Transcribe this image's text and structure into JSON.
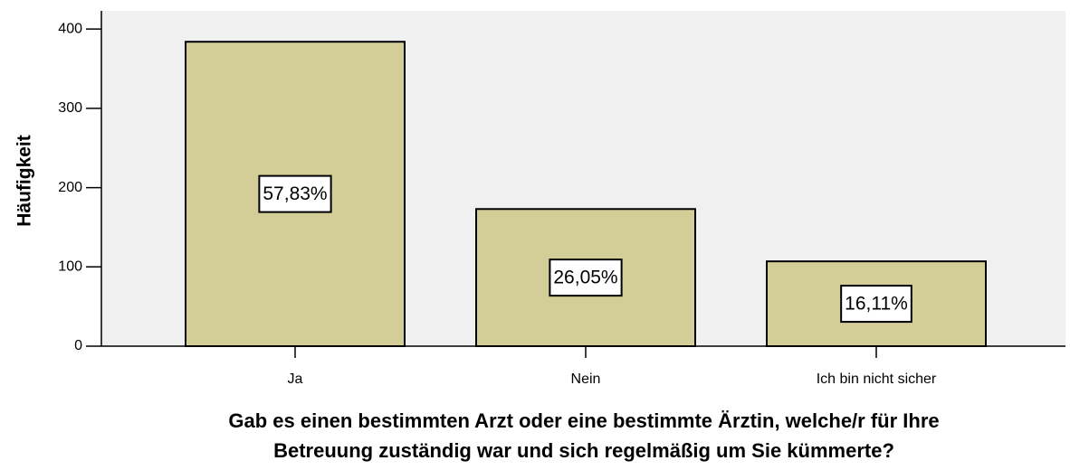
{
  "chart_data": {
    "type": "bar",
    "categories": [
      "Ja",
      "Nein",
      "Ich bin nicht sicher"
    ],
    "values": [
      384,
      173,
      107
    ],
    "percentages": [
      57.83,
      26.05,
      16.11
    ],
    "percentage_labels": [
      "57,83%",
      "26,05%",
      "16,11%"
    ],
    "color": "#d3cd98",
    "ylim": [
      0,
      423
    ],
    "yticks": [
      0,
      100,
      200,
      300,
      400
    ],
    "ylabel": "Häufigkeit",
    "xlabel": [
      "Gab es einen bestimmten Arzt oder eine bestimmte Ärztin, welche/r für Ihre",
      "Betreuung zuständig war und sich regelmäßig um Sie kümmerte?"
    ]
  }
}
